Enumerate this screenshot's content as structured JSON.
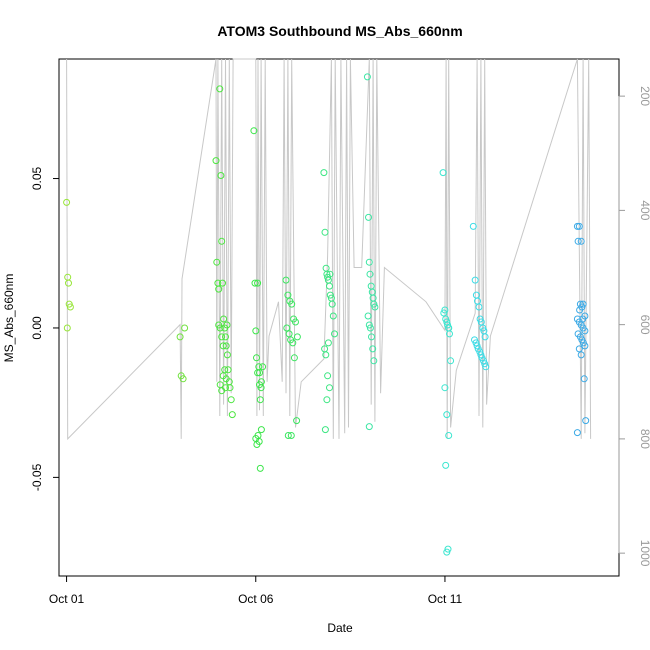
{
  "chart_data": {
    "type": "scatter",
    "title": "ATOM3 Southbound MS_Abs_660nm",
    "xlabel": "Date",
    "ylabel": "MS_Abs_660nm",
    "x_domain": [
      "2016-10-01T00:00",
      "2016-10-15T12:00"
    ],
    "xlim_days": [
      -0.2,
      14.6
    ],
    "ylim": [
      -0.083,
      0.09
    ],
    "y_ticks": [
      -0.05,
      0.0,
      0.05
    ],
    "y_tick_labels": [
      "-0.05",
      "0.00",
      "0.05"
    ],
    "x_ticks": [
      0,
      5,
      10
    ],
    "x_tick_labels": [
      "Oct 01",
      "Oct 06",
      "Oct 11"
    ],
    "secondary_axis": {
      "label": "",
      "reversed": true,
      "ylim": [
        1040,
        135
      ],
      "ticks": [
        200,
        400,
        600,
        800,
        1000
      ],
      "tick_labels": [
        "200",
        "400",
        "600",
        "800",
        "1000"
      ],
      "color": "#9a9a9a"
    },
    "depth_trace_color": "#c8c8c8",
    "depth_trace": [
      [
        0.0,
        135
      ],
      [
        0.03,
        800
      ],
      [
        3.0,
        600
      ],
      [
        3.03,
        800
      ],
      [
        3.05,
        520
      ],
      [
        3.95,
        135
      ],
      [
        3.97,
        700
      ],
      [
        4.0,
        135
      ],
      [
        4.05,
        760
      ],
      [
        4.1,
        135
      ],
      [
        4.15,
        740
      ],
      [
        4.2,
        135
      ],
      [
        4.25,
        760
      ],
      [
        4.3,
        135
      ],
      [
        4.35,
        720
      ],
      [
        4.4,
        135
      ],
      [
        5.0,
        135
      ],
      [
        5.03,
        760
      ],
      [
        5.06,
        135
      ],
      [
        5.1,
        750
      ],
      [
        5.14,
        135
      ],
      [
        5.2,
        760
      ],
      [
        5.25,
        135
      ],
      [
        5.3,
        700
      ],
      [
        5.35,
        620
      ],
      [
        5.6,
        560
      ],
      [
        5.7,
        700
      ],
      [
        5.75,
        135
      ],
      [
        5.8,
        720
      ],
      [
        5.85,
        135
      ],
      [
        5.9,
        760
      ],
      [
        5.95,
        135
      ],
      [
        6.05,
        780
      ],
      [
        6.2,
        700
      ],
      [
        6.8,
        660
      ],
      [
        6.9,
        480
      ],
      [
        7.0,
        135
      ],
      [
        7.05,
        800
      ],
      [
        7.1,
        135
      ],
      [
        7.2,
        800
      ],
      [
        7.25,
        135
      ],
      [
        7.35,
        790
      ],
      [
        7.4,
        135
      ],
      [
        7.45,
        780
      ],
      [
        7.5,
        135
      ],
      [
        7.6,
        500
      ],
      [
        7.8,
        500
      ],
      [
        8.0,
        135
      ],
      [
        8.05,
        740
      ],
      [
        8.1,
        135
      ],
      [
        8.15,
        770
      ],
      [
        8.2,
        135
      ],
      [
        8.3,
        720
      ],
      [
        8.4,
        500
      ],
      [
        9.5,
        560
      ],
      [
        10.0,
        610
      ],
      [
        10.03,
        135
      ],
      [
        10.06,
        800
      ],
      [
        10.1,
        135
      ],
      [
        10.15,
        780
      ],
      [
        10.3,
        680
      ],
      [
        10.8,
        580
      ],
      [
        10.85,
        135
      ],
      [
        10.9,
        760
      ],
      [
        10.95,
        135
      ],
      [
        11.0,
        780
      ],
      [
        11.05,
        135
      ],
      [
        11.1,
        740
      ],
      [
        11.2,
        620
      ],
      [
        13.5,
        135
      ],
      [
        13.6,
        800
      ],
      [
        13.65,
        135
      ],
      [
        13.7,
        790
      ],
      [
        13.8,
        135
      ],
      [
        13.85,
        800
      ]
    ],
    "series": [
      {
        "color": "#98e639",
        "x": [
          0.0,
          0.03,
          0.05,
          0.07,
          0.1,
          0.02
        ],
        "y": [
          0.042,
          0.017,
          0.015,
          0.008,
          0.007,
          0.0
        ]
      },
      {
        "color": "#6fe23c",
        "x": [
          3.0,
          3.03,
          3.08,
          3.12
        ],
        "y": [
          -0.003,
          -0.016,
          -0.017,
          0.0
        ]
      },
      {
        "color": "#4de640",
        "x": [
          3.95,
          3.97,
          4.0,
          4.02,
          4.05,
          4.08,
          4.1,
          4.12,
          4.15,
          4.18,
          4.2,
          4.22,
          4.25,
          4.27,
          4.3,
          4.32,
          4.35,
          4.38,
          4.02,
          4.06,
          4.1,
          4.14,
          4.18,
          4.22,
          4.06,
          4.1,
          4.14,
          4.2,
          4.24
        ],
        "y": [
          0.056,
          0.022,
          0.015,
          0.013,
          0.08,
          0.051,
          0.029,
          0.015,
          0.003,
          0.0,
          -0.003,
          -0.006,
          -0.009,
          -0.014,
          -0.018,
          -0.02,
          -0.024,
          -0.029,
          0.001,
          0.0,
          -0.003,
          -0.006,
          -0.014,
          -0.017,
          -0.019,
          -0.021,
          -0.016,
          -0.02,
          0.001
        ]
      },
      {
        "color": "#3ce64a",
        "x": [
          4.95,
          4.98,
          5.0,
          5.02,
          5.05,
          5.08,
          5.1,
          5.12,
          5.15,
          5.0,
          5.03,
          5.06,
          5.09,
          5.12,
          5.15,
          5.18,
          5.05,
          5.1,
          5.14
        ],
        "y": [
          0.066,
          0.015,
          -0.001,
          -0.01,
          -0.015,
          -0.013,
          -0.019,
          -0.024,
          -0.034,
          -0.037,
          -0.039,
          -0.036,
          -0.038,
          -0.047,
          -0.018,
          -0.013,
          0.015,
          -0.015,
          -0.02
        ]
      },
      {
        "color": "#3ce660",
        "x": [
          5.8,
          5.85,
          5.9,
          5.95,
          6.0,
          6.05,
          6.1,
          5.82,
          5.88,
          5.92,
          5.98,
          6.02,
          6.08,
          5.86,
          5.94
        ],
        "y": [
          0.016,
          0.011,
          0.009,
          0.008,
          0.003,
          0.002,
          -0.003,
          0.0,
          -0.002,
          -0.004,
          -0.005,
          -0.01,
          -0.031,
          -0.036,
          -0.036
        ]
      },
      {
        "color": "#3ce682",
        "x": [
          6.8,
          6.83,
          6.86,
          6.88,
          6.9,
          6.92,
          6.95,
          6.97,
          7.0,
          7.02,
          7.05,
          7.08,
          6.82,
          6.85,
          6.9,
          6.95,
          6.84,
          6.88,
          6.92,
          6.96
        ],
        "y": [
          0.052,
          0.032,
          0.02,
          0.018,
          0.017,
          0.016,
          0.014,
          0.011,
          0.01,
          0.008,
          0.004,
          -0.002,
          -0.007,
          -0.009,
          -0.016,
          -0.02,
          -0.034,
          -0.024,
          -0.005,
          0.018
        ]
      },
      {
        "color": "#3ce6a4",
        "x": [
          7.95,
          7.98,
          8.0,
          8.02,
          8.05,
          8.08,
          8.1,
          8.12,
          8.15,
          7.97,
          8.0,
          8.03,
          8.06,
          8.09,
          8.12,
          8.0
        ],
        "y": [
          0.084,
          0.037,
          0.022,
          0.018,
          0.014,
          0.012,
          0.01,
          0.008,
          0.007,
          0.004,
          0.001,
          0.0,
          -0.003,
          -0.007,
          -0.011,
          -0.033
        ]
      },
      {
        "color": "#3ce6d0",
        "x": [
          9.95,
          9.97,
          10.0,
          10.02,
          10.05,
          10.07,
          10.1,
          10.12,
          10.15,
          10.0,
          10.05,
          10.1,
          10.02,
          10.08,
          10.05,
          10.1
        ],
        "y": [
          0.052,
          0.005,
          0.006,
          0.003,
          0.002,
          0.001,
          0.0,
          -0.002,
          -0.011,
          -0.02,
          -0.029,
          -0.036,
          -0.046,
          -0.074,
          -0.075,
          0.0
        ]
      },
      {
        "color": "#3cdce6",
        "x": [
          10.75,
          10.8,
          10.83,
          10.86,
          10.9,
          10.93,
          10.96,
          11.0,
          11.03,
          11.06,
          10.78,
          10.82,
          10.85,
          10.88,
          10.92,
          10.95,
          10.98,
          11.02,
          11.05,
          11.08
        ],
        "y": [
          0.034,
          0.016,
          0.011,
          0.009,
          0.007,
          0.003,
          0.002,
          0.0,
          -0.001,
          -0.003,
          -0.004,
          -0.005,
          -0.006,
          -0.007,
          -0.008,
          -0.009,
          -0.01,
          -0.011,
          -0.012,
          -0.013
        ]
      },
      {
        "color": "#3caae6",
        "x": [
          13.5,
          13.55,
          13.6,
          13.52,
          13.58,
          13.62,
          13.65,
          13.7,
          13.5,
          13.55,
          13.6,
          13.65,
          13.7,
          13.52,
          13.58,
          13.62,
          13.66,
          13.7,
          13.55,
          13.6,
          13.68,
          13.72,
          13.5,
          13.56,
          13.64
        ],
        "y": [
          0.034,
          0.034,
          0.029,
          0.029,
          0.008,
          0.007,
          0.008,
          0.004,
          0.003,
          0.002,
          0.001,
          0.0,
          -0.001,
          -0.002,
          -0.003,
          -0.004,
          -0.005,
          -0.006,
          -0.007,
          -0.009,
          -0.017,
          -0.031,
          -0.035,
          0.006,
          0.003
        ]
      }
    ]
  }
}
